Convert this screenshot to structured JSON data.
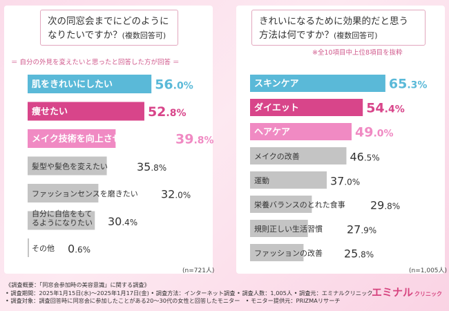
{
  "left": {
    "question_line1": "次の同窓会までにどのように",
    "question_line2": "なりたいですか？",
    "question_suffix": "(複数回答可)",
    "note": "＝ 自分の外見を変えたいと思ったと回答した方が回答 ＝",
    "n_label": "(n=721人)"
  },
  "right": {
    "question_line1": "きれいになるために効果的だと思う",
    "question_line2": "方法は何ですか？",
    "question_suffix": "(複数回答可)",
    "note": "※全10項目中上位8項目を抜粋",
    "n_label": "(n=1,005人)"
  },
  "chart_data": [
    {
      "type": "bar",
      "orientation": "horizontal",
      "unit": "%",
      "categories": [
        "肌をきれいにしたい",
        "痩せたい",
        "メイク技術を向上させたい",
        "髪型や髪色を変えたい",
        "ファッションセンスを磨きたい",
        "自分に自信をもてるようになりたい",
        "その他"
      ],
      "values": [
        56.0,
        52.8,
        39.8,
        35.8,
        32.0,
        30.4,
        0.6
      ],
      "colors": [
        "#5ab9d8",
        "#d8458a",
        "#f08ac3",
        "#c4c4c4",
        "#c4c4c4",
        "#c4c4c4",
        "#c4c4c4"
      ]
    },
    {
      "type": "bar",
      "orientation": "horizontal",
      "unit": "%",
      "categories": [
        "スキンケア",
        "ダイエット",
        "ヘアケア",
        "メイクの改善",
        "運動",
        "栄養バランスのとれた食事",
        "規則正しい生活習慣",
        "ファッションの改善"
      ],
      "values": [
        65.3,
        54.4,
        49.0,
        46.5,
        37.0,
        29.8,
        27.9,
        25.8
      ],
      "colors": [
        "#5ab9d8",
        "#d8458a",
        "#f08ac3",
        "#c4c4c4",
        "#c4c4c4",
        "#c4c4c4",
        "#c4c4c4",
        "#c4c4c4"
      ]
    }
  ],
  "footer": {
    "line1": "《調査概要：「同窓会参加時の美容意識」に関する調査》",
    "line2": "• 調査期間：2025年1月15日(水)～2025年1月17日(金) • 調査方法：インターネット調査 • 調査人数：1,005人 • 調査元：エミナルクリニック",
    "line3": "• 調査対象：調査回答時に同窓会に参加したことがある20～30代の女性と回答したモニター　• モニター提供元：PRIZMAリサーチ"
  },
  "brand": {
    "name": "エミナル",
    "sub": "クリニック"
  }
}
